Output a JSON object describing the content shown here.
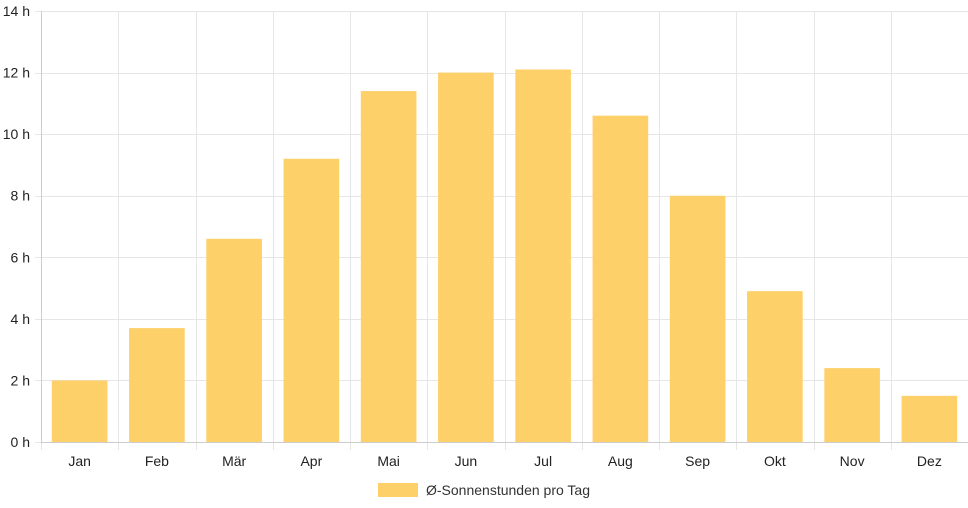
{
  "chart_data": {
    "type": "bar",
    "title": "",
    "xlabel": "",
    "ylabel": "",
    "categories": [
      "Jan",
      "Feb",
      "Mär",
      "Apr",
      "Mai",
      "Jun",
      "Jul",
      "Aug",
      "Sep",
      "Okt",
      "Nov",
      "Dez"
    ],
    "series": [
      {
        "name": "Ø-Sonnenstunden pro Tag",
        "values": [
          2.0,
          3.7,
          6.6,
          9.2,
          11.4,
          12.0,
          12.1,
          10.6,
          8.0,
          4.9,
          2.4,
          1.5
        ]
      }
    ],
    "ylim": [
      0,
      14
    ],
    "yticks": [
      0,
      2,
      4,
      6,
      8,
      10,
      12,
      14
    ],
    "ytick_suffix": " h",
    "grid": true,
    "legend_position": "bottom",
    "bar_color": "#fdd06a",
    "grid_color": "#e6e6e6",
    "axis_color": "#cccccc"
  }
}
